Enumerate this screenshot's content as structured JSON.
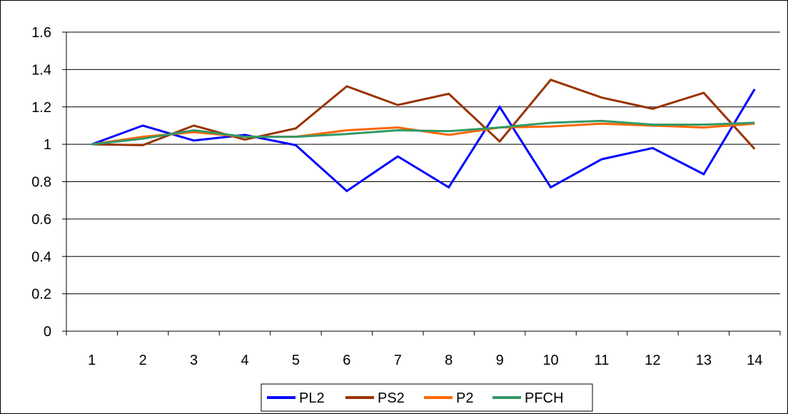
{
  "chart_data": {
    "type": "line",
    "title": "",
    "xlabel": "",
    "ylabel": "",
    "categories": [
      "1",
      "2",
      "3",
      "4",
      "5",
      "6",
      "7",
      "8",
      "9",
      "10",
      "11",
      "12",
      "13",
      "14"
    ],
    "ylim": [
      0,
      1.6
    ],
    "yticks": [
      0,
      0.2,
      0.4,
      0.6,
      0.8,
      1,
      1.2,
      1.4,
      1.6
    ],
    "ytick_labels": [
      "0",
      "0.2",
      "0.4",
      "0.6",
      "0.8",
      "1",
      "1.2",
      "1.4",
      "1.6"
    ],
    "grid": "horizontal",
    "legend_position": "bottom",
    "series": [
      {
        "name": "PL2",
        "color": "#0000FF",
        "values": [
          1.0,
          1.1,
          1.02,
          1.05,
          0.995,
          0.75,
          0.935,
          0.77,
          1.2,
          0.77,
          0.92,
          0.98,
          0.84,
          1.295
        ]
      },
      {
        "name": "PS2",
        "color": "#993300",
        "values": [
          1.0,
          0.995,
          1.1,
          1.025,
          1.085,
          1.31,
          1.21,
          1.27,
          1.015,
          1.345,
          1.25,
          1.19,
          1.275,
          0.975
        ]
      },
      {
        "name": "P2",
        "color": "#FF6600",
        "values": [
          1.0,
          1.04,
          1.065,
          1.04,
          1.04,
          1.075,
          1.09,
          1.05,
          1.09,
          1.095,
          1.11,
          1.1,
          1.09,
          1.11
        ]
      },
      {
        "name": "PFCH",
        "color": "#339966",
        "values": [
          1.0,
          1.03,
          1.075,
          1.04,
          1.04,
          1.055,
          1.075,
          1.07,
          1.09,
          1.115,
          1.125,
          1.105,
          1.105,
          1.115
        ]
      }
    ]
  }
}
